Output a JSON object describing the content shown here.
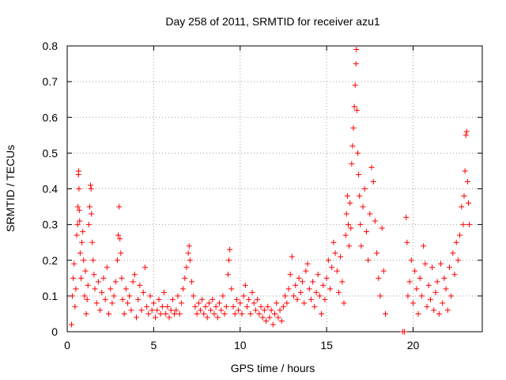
{
  "chart_data": {
    "type": "scatter",
    "title": "Day 258 of 2011, SRMTID for receiver azu1",
    "xlabel": "GPS time / hours",
    "ylabel": "SRMTID / TECUs",
    "xlim": [
      0,
      24
    ],
    "ylim": [
      0,
      0.8
    ],
    "xticks": [
      0,
      5,
      10,
      15,
      20
    ],
    "yticks": [
      0,
      0.1,
      0.2,
      0.3,
      0.4,
      0.5,
      0.6,
      0.7,
      0.8
    ],
    "grid": true,
    "marker": "+",
    "color": "#ff0000",
    "points": [
      [
        0.25,
        0.02
      ],
      [
        0.3,
        0.1
      ],
      [
        0.35,
        0.15
      ],
      [
        0.4,
        0.19
      ],
      [
        0.45,
        0.07
      ],
      [
        0.5,
        0.12
      ],
      [
        0.55,
        0.27
      ],
      [
        0.6,
        0.3
      ],
      [
        0.62,
        0.35
      ],
      [
        0.65,
        0.44
      ],
      [
        0.66,
        0.45
      ],
      [
        0.68,
        0.4
      ],
      [
        0.7,
        0.34
      ],
      [
        0.72,
        0.31
      ],
      [
        0.75,
        0.22
      ],
      [
        0.8,
        0.15
      ],
      [
        0.85,
        0.25
      ],
      [
        0.9,
        0.28
      ],
      [
        0.95,
        0.2
      ],
      [
        1.0,
        0.1
      ],
      [
        1.05,
        0.17
      ],
      [
        1.1,
        0.05
      ],
      [
        1.15,
        0.09
      ],
      [
        1.2,
        0.13
      ],
      [
        1.25,
        0.3
      ],
      [
        1.3,
        0.35
      ],
      [
        1.35,
        0.41
      ],
      [
        1.38,
        0.4
      ],
      [
        1.4,
        0.33
      ],
      [
        1.45,
        0.25
      ],
      [
        1.5,
        0.2
      ],
      [
        1.55,
        0.16
      ],
      [
        1.6,
        0.12
      ],
      [
        1.7,
        0.08
      ],
      [
        1.8,
        0.14
      ],
      [
        1.9,
        0.06
      ],
      [
        2.0,
        0.11
      ],
      [
        2.1,
        0.15
      ],
      [
        2.2,
        0.09
      ],
      [
        2.3,
        0.18
      ],
      [
        2.4,
        0.05
      ],
      [
        2.5,
        0.12
      ],
      [
        2.6,
        0.08
      ],
      [
        2.7,
        0.1
      ],
      [
        2.8,
        0.14
      ],
      [
        2.9,
        0.2
      ],
      [
        2.95,
        0.27
      ],
      [
        3.0,
        0.35
      ],
      [
        3.05,
        0.26
      ],
      [
        3.1,
        0.22
      ],
      [
        3.15,
        0.15
      ],
      [
        3.2,
        0.09
      ],
      [
        3.3,
        0.05
      ],
      [
        3.4,
        0.12
      ],
      [
        3.5,
        0.08
      ],
      [
        3.6,
        0.1
      ],
      [
        3.7,
        0.06
      ],
      [
        3.8,
        0.14
      ],
      [
        3.9,
        0.16
      ],
      [
        4.0,
        0.04
      ],
      [
        4.1,
        0.09
      ],
      [
        4.2,
        0.13
      ],
      [
        4.3,
        0.06
      ],
      [
        4.4,
        0.11
      ],
      [
        4.5,
        0.18
      ],
      [
        4.6,
        0.07
      ],
      [
        4.7,
        0.05
      ],
      [
        4.8,
        0.1
      ],
      [
        4.9,
        0.06
      ],
      [
        5.0,
        0.08
      ],
      [
        5.1,
        0.04
      ],
      [
        5.2,
        0.06
      ],
      [
        5.3,
        0.09
      ],
      [
        5.4,
        0.05
      ],
      [
        5.5,
        0.07
      ],
      [
        5.6,
        0.11
      ],
      [
        5.7,
        0.05
      ],
      [
        5.8,
        0.07
      ],
      [
        5.9,
        0.04
      ],
      [
        6.0,
        0.06
      ],
      [
        6.1,
        0.09
      ],
      [
        6.2,
        0.05
      ],
      [
        6.3,
        0.06
      ],
      [
        6.4,
        0.1
      ],
      [
        6.5,
        0.05
      ],
      [
        6.6,
        0.08
      ],
      [
        6.7,
        0.12
      ],
      [
        6.8,
        0.15
      ],
      [
        6.9,
        0.18
      ],
      [
        7.0,
        0.22
      ],
      [
        7.05,
        0.24
      ],
      [
        7.1,
        0.2
      ],
      [
        7.2,
        0.14
      ],
      [
        7.3,
        0.1
      ],
      [
        7.4,
        0.07
      ],
      [
        7.5,
        0.05
      ],
      [
        7.6,
        0.08
      ],
      [
        7.7,
        0.06
      ],
      [
        7.8,
        0.09
      ],
      [
        7.9,
        0.05
      ],
      [
        8.0,
        0.07
      ],
      [
        8.1,
        0.04
      ],
      [
        8.2,
        0.08
      ],
      [
        8.3,
        0.06
      ],
      [
        8.4,
        0.09
      ],
      [
        8.5,
        0.05
      ],
      [
        8.6,
        0.07
      ],
      [
        8.7,
        0.04
      ],
      [
        8.8,
        0.08
      ],
      [
        8.9,
        0.06
      ],
      [
        9.0,
        0.1
      ],
      [
        9.1,
        0.05
      ],
      [
        9.2,
        0.07
      ],
      [
        9.3,
        0.16
      ],
      [
        9.35,
        0.2
      ],
      [
        9.4,
        0.23
      ],
      [
        9.5,
        0.12
      ],
      [
        9.6,
        0.07
      ],
      [
        9.7,
        0.05
      ],
      [
        9.8,
        0.09
      ],
      [
        9.9,
        0.06
      ],
      [
        10.0,
        0.08
      ],
      [
        10.1,
        0.05
      ],
      [
        10.2,
        0.1
      ],
      [
        10.3,
        0.13
      ],
      [
        10.4,
        0.07
      ],
      [
        10.5,
        0.09
      ],
      [
        10.6,
        0.05
      ],
      [
        10.7,
        0.11
      ],
      [
        10.8,
        0.08
      ],
      [
        10.9,
        0.06
      ],
      [
        11.0,
        0.09
      ],
      [
        11.1,
        0.05
      ],
      [
        11.2,
        0.07
      ],
      [
        11.3,
        0.04
      ],
      [
        11.4,
        0.06
      ],
      [
        11.5,
        0.03
      ],
      [
        11.6,
        0.07
      ],
      [
        11.7,
        0.04
      ],
      [
        11.8,
        0.06
      ],
      [
        11.9,
        0.02
      ],
      [
        12.0,
        0.05
      ],
      [
        12.1,
        0.08
      ],
      [
        12.2,
        0.04
      ],
      [
        12.3,
        0.06
      ],
      [
        12.4,
        0.03
      ],
      [
        12.5,
        0.07
      ],
      [
        12.6,
        0.1
      ],
      [
        12.7,
        0.08
      ],
      [
        12.8,
        0.12
      ],
      [
        12.9,
        0.16
      ],
      [
        13.0,
        0.21
      ],
      [
        13.1,
        0.1
      ],
      [
        13.2,
        0.13
      ],
      [
        13.3,
        0.09
      ],
      [
        13.4,
        0.15
      ],
      [
        13.5,
        0.11
      ],
      [
        13.6,
        0.14
      ],
      [
        13.7,
        0.08
      ],
      [
        13.8,
        0.17
      ],
      [
        13.9,
        0.19
      ],
      [
        14.0,
        0.12
      ],
      [
        14.1,
        0.09
      ],
      [
        14.2,
        0.14
      ],
      [
        14.3,
        0.07
      ],
      [
        14.4,
        0.11
      ],
      [
        14.5,
        0.16
      ],
      [
        14.6,
        0.1
      ],
      [
        14.7,
        0.05
      ],
      [
        14.8,
        0.13
      ],
      [
        14.9,
        0.09
      ],
      [
        15.0,
        0.15
      ],
      [
        15.1,
        0.2
      ],
      [
        15.2,
        0.12
      ],
      [
        15.3,
        0.18
      ],
      [
        15.4,
        0.25
      ],
      [
        15.5,
        0.22
      ],
      [
        15.6,
        0.17
      ],
      [
        15.7,
        0.11
      ],
      [
        15.8,
        0.21
      ],
      [
        15.9,
        0.14
      ],
      [
        16.0,
        0.08
      ],
      [
        16.1,
        0.27
      ],
      [
        16.15,
        0.33
      ],
      [
        16.2,
        0.38
      ],
      [
        16.25,
        0.3
      ],
      [
        16.3,
        0.24
      ],
      [
        16.35,
        0.36
      ],
      [
        16.4,
        0.29
      ],
      [
        16.45,
        0.47
      ],
      [
        16.5,
        0.52
      ],
      [
        16.55,
        0.57
      ],
      [
        16.6,
        0.63
      ],
      [
        16.65,
        0.69
      ],
      [
        16.7,
        0.75
      ],
      [
        16.72,
        0.79
      ],
      [
        16.75,
        0.62
      ],
      [
        16.8,
        0.5
      ],
      [
        16.85,
        0.44
      ],
      [
        16.9,
        0.38
      ],
      [
        16.95,
        0.3
      ],
      [
        17.0,
        0.24
      ],
      [
        17.1,
        0.35
      ],
      [
        17.2,
        0.4
      ],
      [
        17.3,
        0.28
      ],
      [
        17.4,
        0.2
      ],
      [
        17.5,
        0.33
      ],
      [
        17.6,
        0.46
      ],
      [
        17.7,
        0.42
      ],
      [
        17.8,
        0.31
      ],
      [
        17.9,
        0.22
      ],
      [
        18.0,
        0.15
      ],
      [
        18.1,
        0.1
      ],
      [
        18.2,
        0.29
      ],
      [
        18.3,
        0.17
      ],
      [
        18.4,
        0.05
      ],
      [
        19.4,
        0.0
      ],
      [
        19.5,
        0.0
      ],
      [
        19.6,
        0.32
      ],
      [
        19.65,
        0.25
      ],
      [
        19.7,
        0.1
      ],
      [
        19.8,
        0.14
      ],
      [
        19.9,
        0.2
      ],
      [
        20.0,
        0.08
      ],
      [
        20.1,
        0.17
      ],
      [
        20.2,
        0.12
      ],
      [
        20.3,
        0.05
      ],
      [
        20.4,
        0.15
      ],
      [
        20.5,
        0.1
      ],
      [
        20.6,
        0.24
      ],
      [
        20.7,
        0.19
      ],
      [
        20.8,
        0.07
      ],
      [
        20.9,
        0.13
      ],
      [
        21.0,
        0.09
      ],
      [
        21.1,
        0.18
      ],
      [
        21.2,
        0.06
      ],
      [
        21.3,
        0.11
      ],
      [
        21.4,
        0.14
      ],
      [
        21.5,
        0.05
      ],
      [
        21.6,
        0.19
      ],
      [
        21.7,
        0.08
      ],
      [
        21.8,
        0.15
      ],
      [
        21.9,
        0.12
      ],
      [
        22.0,
        0.06
      ],
      [
        22.1,
        0.18
      ],
      [
        22.2,
        0.1
      ],
      [
        22.3,
        0.22
      ],
      [
        22.4,
        0.16
      ],
      [
        22.5,
        0.25
      ],
      [
        22.6,
        0.2
      ],
      [
        22.7,
        0.27
      ],
      [
        22.8,
        0.35
      ],
      [
        22.9,
        0.3
      ],
      [
        22.95,
        0.38
      ],
      [
        23.0,
        0.45
      ],
      [
        23.05,
        0.55
      ],
      [
        23.1,
        0.56
      ],
      [
        23.15,
        0.42
      ],
      [
        23.2,
        0.36
      ],
      [
        23.25,
        0.3
      ]
    ]
  }
}
